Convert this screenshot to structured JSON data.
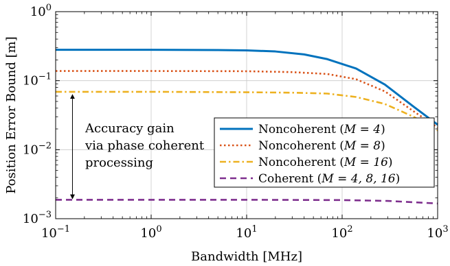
{
  "chart_data": {
    "type": "line",
    "xlabel": "Bandwidth [MHz]",
    "ylabel": "Position Error Bound [m]",
    "x_scale": "log",
    "y_scale": "log",
    "xlim": [
      0.1,
      1000
    ],
    "ylim": [
      0.001,
      1
    ],
    "grid": true,
    "x_ticks": [
      {
        "value": 0.1,
        "base": "10",
        "exp": "−1"
      },
      {
        "value": 1,
        "base": "10",
        "exp": "0"
      },
      {
        "value": 10,
        "base": "10",
        "exp": "1"
      },
      {
        "value": 100,
        "base": "10",
        "exp": "2"
      },
      {
        "value": 1000,
        "base": "10",
        "exp": "3"
      }
    ],
    "y_ticks": [
      {
        "value": 1,
        "base": "10",
        "exp": "0"
      },
      {
        "value": 0.1,
        "base": "10",
        "exp": "−1"
      },
      {
        "value": 0.01,
        "base": "10",
        "exp": "−2"
      },
      {
        "value": 0.001,
        "base": "10",
        "exp": "−3"
      }
    ],
    "legend_position": "center-right",
    "series": [
      {
        "name": "Noncoherent (M = 4)",
        "legend_prefix": "Noncoherent (",
        "legend_math": "M = 4",
        "legend_suffix": ")",
        "color": "#0072BD",
        "style": "solid",
        "x": [
          0.1,
          1,
          5,
          10,
          20,
          40,
          70,
          140,
          280,
          560,
          1000
        ],
        "y": [
          0.28,
          0.28,
          0.278,
          0.275,
          0.265,
          0.24,
          0.205,
          0.15,
          0.088,
          0.042,
          0.023
        ]
      },
      {
        "name": "Noncoherent (M = 8)",
        "legend_prefix": "Noncoherent (",
        "legend_math": "M = 8",
        "legend_suffix": ")",
        "color": "#D95319",
        "style": "dotted",
        "x": [
          0.1,
          1,
          10,
          30,
          70,
          140,
          280,
          560,
          1000
        ],
        "y": [
          0.138,
          0.138,
          0.137,
          0.133,
          0.125,
          0.105,
          0.07,
          0.036,
          0.021
        ]
      },
      {
        "name": "Noncoherent (M = 16)",
        "legend_prefix": "Noncoherent (",
        "legend_math": "M = 16",
        "legend_suffix": ")",
        "color": "#EDB120",
        "style": "dashdot",
        "x": [
          0.1,
          1,
          10,
          30,
          70,
          140,
          280,
          560,
          1000
        ],
        "y": [
          0.069,
          0.069,
          0.068,
          0.067,
          0.065,
          0.058,
          0.046,
          0.03,
          0.019
        ]
      },
      {
        "name": "Coherent (M = 4, 8, 16)",
        "legend_prefix": "Coherent (",
        "legend_math": "M = 4, 8, 16",
        "legend_suffix": ")",
        "color": "#7E2F8E",
        "style": "dashed",
        "x": [
          0.1,
          1,
          10,
          100,
          300,
          1000
        ],
        "y": [
          0.00188,
          0.00188,
          0.00188,
          0.00186,
          0.00181,
          0.00166
        ]
      }
    ],
    "annotation": {
      "lines": [
        "Accuracy gain",
        "via phase coherent",
        "processing"
      ],
      "arrow_x": 0.15,
      "arrow_y_from": 0.0019,
      "arrow_y_to": 0.069
    }
  }
}
